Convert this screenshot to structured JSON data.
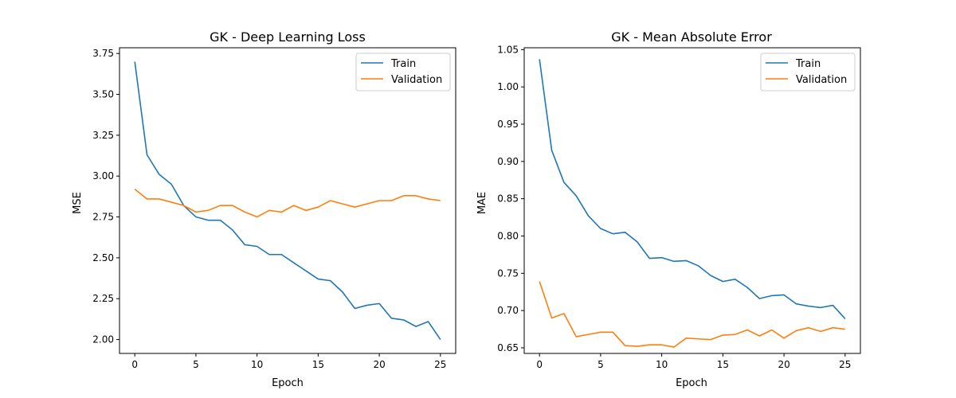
{
  "chart_data": [
    {
      "type": "line",
      "title": "GK - Deep Learning Loss",
      "xlabel": "Epoch",
      "ylabel": "MSE",
      "xlim": [
        -1.25,
        26.25
      ],
      "ylim": [
        1.915,
        3.785
      ],
      "xticks": [
        0,
        5,
        10,
        15,
        20,
        25
      ],
      "yticks": [
        2.0,
        2.25,
        2.5,
        2.75,
        3.0,
        3.25,
        3.5,
        3.75
      ],
      "ytick_labels": [
        "2.00",
        "2.25",
        "2.50",
        "2.75",
        "3.00",
        "3.25",
        "3.50",
        "3.75"
      ],
      "x": [
        0,
        1,
        2,
        3,
        4,
        5,
        6,
        7,
        8,
        9,
        10,
        11,
        12,
        13,
        14,
        15,
        16,
        17,
        18,
        19,
        20,
        21,
        22,
        23,
        24,
        25
      ],
      "legend_position": "upper-right",
      "series": [
        {
          "name": "Train",
          "color": "#1f77b4",
          "values": [
            3.7,
            3.13,
            3.01,
            2.95,
            2.82,
            2.75,
            2.73,
            2.73,
            2.67,
            2.58,
            2.57,
            2.52,
            2.52,
            2.47,
            2.42,
            2.37,
            2.36,
            2.29,
            2.19,
            2.21,
            2.22,
            2.13,
            2.12,
            2.08,
            2.11,
            2.0
          ]
        },
        {
          "name": "Validation",
          "color": "#ff7f0e",
          "values": [
            2.92,
            2.86,
            2.86,
            2.84,
            2.82,
            2.78,
            2.79,
            2.82,
            2.82,
            2.78,
            2.75,
            2.79,
            2.78,
            2.82,
            2.79,
            2.81,
            2.85,
            2.83,
            2.81,
            2.83,
            2.85,
            2.85,
            2.88,
            2.88,
            2.86,
            2.85
          ]
        }
      ]
    },
    {
      "type": "line",
      "title": "GK - Mean Absolute Error",
      "xlabel": "Epoch",
      "ylabel": "MAE",
      "xlim": [
        -1.25,
        26.25
      ],
      "ylim": [
        0.6425,
        1.0525
      ],
      "xticks": [
        0,
        5,
        10,
        15,
        20,
        25
      ],
      "yticks": [
        0.65,
        0.7,
        0.75,
        0.8,
        0.85,
        0.9,
        0.95,
        1.0,
        1.05
      ],
      "ytick_labels": [
        "0.65",
        "0.70",
        "0.75",
        "0.80",
        "0.85",
        "0.90",
        "0.95",
        "1.00",
        "1.05"
      ],
      "x": [
        0,
        1,
        2,
        3,
        4,
        5,
        6,
        7,
        8,
        9,
        10,
        11,
        12,
        13,
        14,
        15,
        16,
        17,
        18,
        19,
        20,
        21,
        22,
        23,
        24,
        25
      ],
      "legend_position": "upper-right",
      "series": [
        {
          "name": "Train",
          "color": "#1f77b4",
          "values": [
            1.037,
            0.915,
            0.872,
            0.854,
            0.827,
            0.81,
            0.803,
            0.805,
            0.792,
            0.77,
            0.771,
            0.766,
            0.767,
            0.76,
            0.747,
            0.739,
            0.742,
            0.731,
            0.716,
            0.72,
            0.721,
            0.709,
            0.706,
            0.704,
            0.707,
            0.689
          ]
        },
        {
          "name": "Validation",
          "color": "#ff7f0e",
          "values": [
            0.739,
            0.69,
            0.696,
            0.665,
            0.668,
            0.671,
            0.671,
            0.653,
            0.652,
            0.654,
            0.654,
            0.651,
            0.663,
            0.662,
            0.661,
            0.667,
            0.668,
            0.674,
            0.666,
            0.674,
            0.663,
            0.673,
            0.677,
            0.672,
            0.677,
            0.675
          ]
        }
      ]
    }
  ]
}
